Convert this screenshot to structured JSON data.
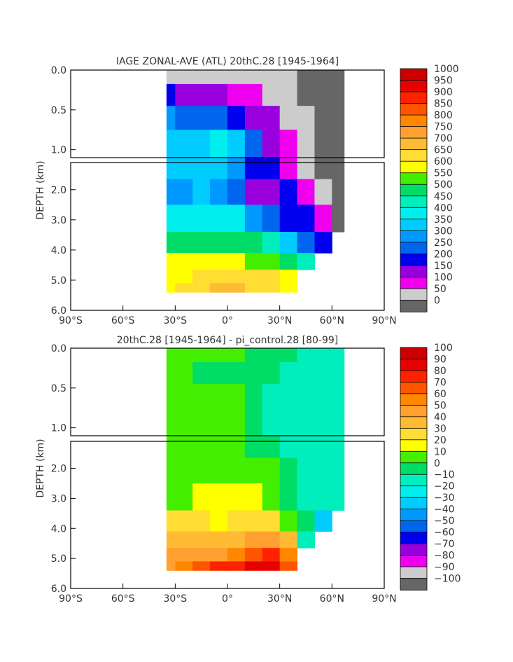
{
  "chart_data": [
    {
      "type": "heatmap",
      "title": "IAGE ZONAL-AVE (ATL) 20thC.28 [1945-1964]",
      "ylabel": "DEPTH (km)",
      "x_tick_labels": [
        "90°S",
        "60°S",
        "30°S",
        "0°",
        "30°N",
        "60°N",
        "90°N"
      ],
      "x_ticks": [
        -90,
        -60,
        -30,
        0,
        30,
        60,
        90
      ],
      "xlim": [
        -90,
        90
      ],
      "upper_y_tick_labels": [
        "0.0",
        "0.5",
        "1.0"
      ],
      "upper_y_ticks": [
        0,
        0.5,
        1.0
      ],
      "upper_ylim": [
        0,
        1.1
      ],
      "lower_y_tick_labels": [
        "2.0",
        "3.0",
        "4.0",
        "5.0",
        "6.0"
      ],
      "lower_y_ticks": [
        2,
        3,
        4,
        5,
        6
      ],
      "lower_ylim": [
        1.1,
        6.0
      ],
      "colorbar_labels": [
        "1000",
        "950",
        "900",
        "850",
        "800",
        "750",
        "700",
        "650",
        "600",
        "550",
        "500",
        "450",
        "400",
        "350",
        "300",
        "250",
        "200",
        "150",
        "100",
        "50",
        "0"
      ],
      "colorbar_colors": [
        "#cc0000",
        "#e60000",
        "#ff2200",
        "#ff5500",
        "#ff8800",
        "#ffa030",
        "#ffbb33",
        "#ffdd33",
        "#ffff00",
        "#44ee00",
        "#00dd66",
        "#00eebb",
        "#00eeee",
        "#00ccff",
        "#0099ff",
        "#0066ee",
        "#0000ee",
        "#9900dd",
        "#ee00ee",
        "#cccccc",
        "#666666"
      ],
      "field": {
        "lat": [
          -35,
          -25,
          -15,
          -5,
          5,
          15,
          25,
          35,
          45,
          55,
          65
        ],
        "depth": [
          0.05,
          0.3,
          0.6,
          0.9,
          1.3,
          2.0,
          3.0,
          3.8,
          4.4,
          4.9,
          5.3
        ],
        "values": [
          [
            80,
            70,
            60,
            60,
            60,
            60,
            60,
            60,
            40,
            20,
            20
          ],
          [
            200,
            180,
            160,
            150,
            140,
            120,
            80,
            60,
            40,
            20,
            20
          ],
          [
            320,
            280,
            260,
            250,
            220,
            190,
            150,
            80,
            60,
            20,
            20
          ],
          [
            360,
            360,
            380,
            400,
            380,
            280,
            180,
            100,
            60,
            20,
            20
          ],
          [
            340,
            340,
            340,
            340,
            300,
            230,
            200,
            130,
            80,
            30,
            20
          ],
          [
            320,
            300,
            340,
            330,
            260,
            170,
            180,
            200,
            140,
            80,
            20
          ],
          [
            420,
            410,
            420,
            400,
            390,
            330,
            280,
            210,
            210,
            100,
            20
          ],
          [
            500,
            500,
            500,
            500,
            500,
            480,
            430,
            360,
            280,
            200,
            null
          ],
          [
            580,
            580,
            590,
            590,
            580,
            560,
            540,
            500,
            430,
            null,
            null
          ],
          [
            590,
            610,
            630,
            630,
            650,
            630,
            620,
            600,
            null,
            null,
            null
          ],
          [
            600,
            640,
            660,
            680,
            680,
            660,
            650,
            600,
            null,
            null,
            null
          ]
        ]
      }
    },
    {
      "type": "heatmap",
      "title": "20thC.28 [1945-1964] - pi_control.28 [80-99]",
      "ylabel": "DEPTH (km)",
      "x_tick_labels": [
        "90°S",
        "60°S",
        "30°S",
        "0°",
        "30°N",
        "60°N",
        "90°N"
      ],
      "x_ticks": [
        -90,
        -60,
        -30,
        0,
        30,
        60,
        90
      ],
      "xlim": [
        -90,
        90
      ],
      "upper_y_tick_labels": [
        "0.0",
        "0.5",
        "1.0"
      ],
      "upper_y_ticks": [
        0,
        0.5,
        1.0
      ],
      "upper_ylim": [
        0,
        1.1
      ],
      "lower_y_tick_labels": [
        "2.0",
        "3.0",
        "4.0",
        "5.0",
        "6.0"
      ],
      "lower_y_ticks": [
        2,
        3,
        4,
        5,
        6
      ],
      "lower_ylim": [
        1.1,
        6.0
      ],
      "colorbar_labels": [
        "100",
        "90",
        "80",
        "70",
        "60",
        "50",
        "40",
        "30",
        "20",
        "10",
        "0",
        "−10",
        "−20",
        "−30",
        "−40",
        "−50",
        "−60",
        "−70",
        "−80",
        "−90",
        "−100"
      ],
      "colorbar_colors": [
        "#cc0000",
        "#e60000",
        "#ff2200",
        "#ff5500",
        "#ff8800",
        "#ffa030",
        "#ffbb33",
        "#ffdd33",
        "#ffff00",
        "#44ee00",
        "#00dd66",
        "#00eebb",
        "#00eeee",
        "#00ccff",
        "#0099ff",
        "#0066ee",
        "#0000ee",
        "#9900dd",
        "#ee00ee",
        "#cccccc",
        "#666666"
      ],
      "field": {
        "lat": [
          -35,
          -25,
          -15,
          -5,
          5,
          15,
          25,
          35,
          45,
          55,
          65
        ],
        "depth": [
          0.05,
          0.3,
          0.6,
          0.9,
          1.3,
          2.0,
          3.0,
          3.8,
          4.4,
          4.9,
          5.3
        ],
        "values": [
          [
            8,
            8,
            6,
            6,
            5,
            3,
            2,
            -2,
            -5,
            -5,
            -10
          ],
          [
            8,
            6,
            4,
            3,
            2,
            -2,
            -4,
            -6,
            -8,
            -8,
            -10
          ],
          [
            10,
            12,
            12,
            12,
            12,
            -2,
            -5,
            -8,
            -8,
            -8,
            -8
          ],
          [
            12,
            12,
            14,
            14,
            12,
            -2,
            -6,
            -8,
            -8,
            -8,
            -8
          ],
          [
            14,
            14,
            14,
            14,
            14,
            4,
            -4,
            -8,
            -8,
            -8,
            -8
          ],
          [
            12,
            12,
            12,
            14,
            14,
            12,
            6,
            -2,
            -6,
            -10,
            -8
          ],
          [
            14,
            14,
            18,
            22,
            22,
            16,
            12,
            4,
            -6,
            -12,
            -10
          ],
          [
            30,
            28,
            24,
            22,
            24,
            28,
            24,
            14,
            -4,
            -30,
            null
          ],
          [
            36,
            38,
            34,
            34,
            38,
            44,
            48,
            40,
            -10,
            null,
            null
          ],
          [
            46,
            48,
            52,
            50,
            58,
            70,
            72,
            60,
            null,
            null,
            null
          ],
          [
            52,
            60,
            70,
            76,
            80,
            86,
            88,
            70,
            null,
            null,
            null
          ]
        ]
      }
    }
  ]
}
